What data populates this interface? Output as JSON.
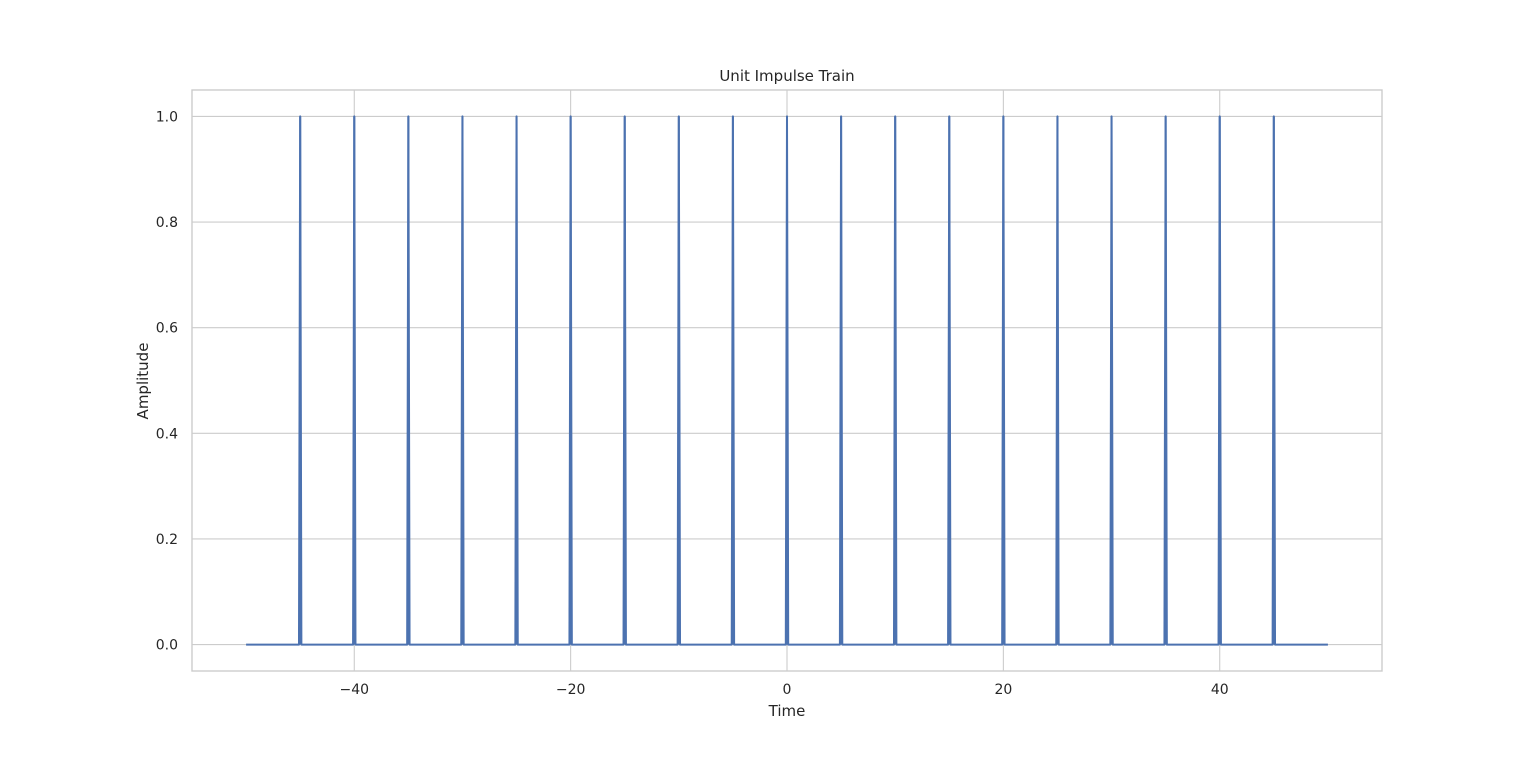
{
  "chart_data": {
    "type": "line",
    "title": "Unit Impulse Train",
    "xlabel": "Time",
    "ylabel": "Amplitude",
    "xlim": [
      -55,
      55
    ],
    "ylim": [
      -0.05,
      1.05
    ],
    "x_domain": [
      -50,
      50
    ],
    "grid": true,
    "legend": "none",
    "line_color": "#4c72b0",
    "grid_color": "#cccccc",
    "spine_color": "#cccccc",
    "x_ticks": [
      -40,
      -20,
      0,
      20,
      40
    ],
    "x_tick_labels": [
      "−40",
      "−20",
      "0",
      "20",
      "40"
    ],
    "y_ticks": [
      0.0,
      0.2,
      0.4,
      0.6,
      0.8,
      1.0
    ],
    "y_tick_labels": [
      "0.0",
      "0.2",
      "0.4",
      "0.6",
      "0.8",
      "1.0"
    ],
    "impulse_period": 5,
    "impulse_times": [
      -45,
      -40,
      -35,
      -30,
      -25,
      -20,
      -15,
      -10,
      -5,
      0,
      5,
      10,
      15,
      20,
      25,
      30,
      35,
      40,
      45
    ],
    "impulse_amplitude": 1.0,
    "baseline": 0.0
  }
}
